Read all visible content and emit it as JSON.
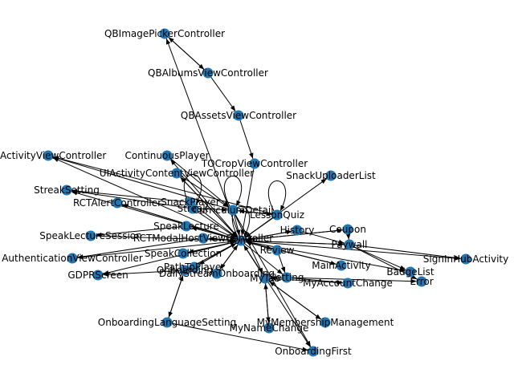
{
  "colors": {
    "node": "#1f77b4",
    "edge": "#000000",
    "label": "#000000",
    "background": "#ffffff"
  },
  "graph": {
    "nodes": [
      {
        "id": "qbimagepicker",
        "label": "QBImagePickerController"
      },
      {
        "id": "qbalbums",
        "label": "QBAlbumsViewController"
      },
      {
        "id": "qbassets",
        "label": "QBAssetsViewController"
      },
      {
        "id": "activityvc",
        "label": "UIActivityViewController"
      },
      {
        "id": "continuous",
        "label": "ContinuousPlayer"
      },
      {
        "id": "tocrop",
        "label": "TOCropViewController"
      },
      {
        "id": "uiactivitycontent",
        "label": "UIActivityContentViewController"
      },
      {
        "id": "snackuploader",
        "label": "SnackUploaderList"
      },
      {
        "id": "streaksetting",
        "label": "StreakSetting"
      },
      {
        "id": "snackplayer",
        "label": "SnackPlayer"
      },
      {
        "id": "rctalert",
        "label": "RCTAlertController"
      },
      {
        "id": "streak",
        "label": "Streak"
      },
      {
        "id": "curriculum",
        "label": "CurriculumDetail"
      },
      {
        "id": "lessonquiz",
        "label": "LessonQuiz"
      },
      {
        "id": "coupon",
        "label": "Coupon"
      },
      {
        "id": "speaklecture",
        "label": "SpeakLecture"
      },
      {
        "id": "speaklecturesession",
        "label": "SpeakLectureSession"
      },
      {
        "id": "rctmodalhost",
        "label": "RCTModalHostViewController"
      },
      {
        "id": "history",
        "label": "History"
      },
      {
        "id": "paywall",
        "label": "Paywall"
      },
      {
        "id": "signinhub",
        "label": "SignInHubActivity"
      },
      {
        "id": "auth",
        "label": "AuthenticationViewController"
      },
      {
        "id": "speakcollection",
        "label": "SpeakCollection"
      },
      {
        "id": "review",
        "label": "Review"
      },
      {
        "id": "mainactivity",
        "label": "MainActivity"
      },
      {
        "id": "badgelist",
        "label": "BadgeList"
      },
      {
        "id": "gdpr",
        "label": "GDPRScreen"
      },
      {
        "id": "onboarding",
        "label": "Onboarding"
      },
      {
        "id": "pathtoplayer",
        "label": "PathToPlayer"
      },
      {
        "id": "dailystream",
        "label": "DailyStreamOnboarding"
      },
      {
        "id": "mytab",
        "label": "MyTab"
      },
      {
        "id": "setting",
        "label": "Setting"
      },
      {
        "id": "error",
        "label": "Error"
      },
      {
        "id": "myaccountchange",
        "label": "MyAccountChange"
      },
      {
        "id": "onboardinglang",
        "label": "OnboardingLanguageSetting"
      },
      {
        "id": "mymembership",
        "label": "MyMembershipManagement"
      },
      {
        "id": "mynamechange",
        "label": "MyNameChange"
      },
      {
        "id": "onboardingfirst",
        "label": "OnboardingFirst"
      },
      {
        "id": "home",
        "label": "Home"
      }
    ],
    "edges": [
      [
        "qbimagepicker",
        "qbalbums"
      ],
      [
        "qbalbums",
        "qbimagepicker"
      ],
      [
        "qbalbums",
        "qbassets"
      ],
      [
        "qbassets",
        "tocrop"
      ],
      [
        "tocrop",
        "home"
      ],
      [
        "home",
        "qbimagepicker"
      ],
      [
        "home",
        "activityvc"
      ],
      [
        "curriculum",
        "activityvc"
      ],
      [
        "lessonquiz",
        "activityvc"
      ],
      [
        "home",
        "uiactivitycontent"
      ],
      [
        "uiactivitycontent",
        "home"
      ],
      [
        "home",
        "continuous"
      ],
      [
        "home",
        "snackuploader"
      ],
      [
        "snackplayer",
        "streaksetting"
      ],
      [
        "home",
        "streaksetting"
      ],
      [
        "home",
        "rctalert"
      ],
      [
        "streak",
        "curriculum"
      ],
      [
        "curriculum",
        "lessonquiz"
      ],
      [
        "lessonquiz",
        "curriculum"
      ],
      [
        "home",
        "coupon"
      ],
      [
        "coupon",
        "home"
      ],
      [
        "speaklecture",
        "speaklecturesession"
      ],
      [
        "home",
        "speaklecture"
      ],
      [
        "home",
        "rctmodalhost"
      ],
      [
        "history",
        "home"
      ],
      [
        "home",
        "history"
      ],
      [
        "paywall",
        "home"
      ],
      [
        "home",
        "paywall"
      ],
      [
        "home",
        "signinhub"
      ],
      [
        "paywall",
        "signinhub"
      ],
      [
        "home",
        "auth"
      ],
      [
        "rctmodalhost",
        "auth"
      ],
      [
        "speakcollection",
        "home"
      ],
      [
        "home",
        "speakcollection"
      ],
      [
        "review",
        "home"
      ],
      [
        "mainactivity",
        "home"
      ],
      [
        "home",
        "mainactivity"
      ],
      [
        "home",
        "badgelist"
      ],
      [
        "paywall",
        "badgelist"
      ],
      [
        "home",
        "gdpr"
      ],
      [
        "onboarding",
        "gdpr"
      ],
      [
        "home",
        "onboarding"
      ],
      [
        "home",
        "pathtoplayer"
      ],
      [
        "dailystream",
        "home"
      ],
      [
        "mytab",
        "home"
      ],
      [
        "setting",
        "mytab"
      ],
      [
        "setting",
        "error"
      ],
      [
        "paywall",
        "error"
      ],
      [
        "mytab",
        "myaccountchange"
      ],
      [
        "setting",
        "myaccountchange"
      ],
      [
        "onboardinglang",
        "onboarding"
      ],
      [
        "onboarding",
        "onboardinglang"
      ],
      [
        "mytab",
        "mymembership"
      ],
      [
        "mymembership",
        "mytab"
      ],
      [
        "mytab",
        "mynamechange"
      ],
      [
        "mynamechange",
        "mytab"
      ],
      [
        "onboardinglang",
        "onboardingfirst"
      ],
      [
        "curriculum",
        "onboardingfirst"
      ],
      [
        "home",
        "onboardingfirst"
      ],
      [
        "streak",
        "home"
      ],
      [
        "snackplayer",
        "home"
      ],
      [
        "home",
        "review"
      ],
      [
        "history",
        "paywall"
      ],
      [
        "coupon",
        "paywall"
      ],
      [
        "review",
        "setting"
      ],
      [
        "home",
        "setting"
      ],
      [
        "curriculum",
        "home"
      ],
      [
        "lessonquiz",
        "home"
      ],
      [
        "speaklecturesession",
        "home"
      ],
      [
        "pathtoplayer",
        "home"
      ],
      [
        "home",
        "dailystream"
      ],
      [
        "streak",
        "streaksetting"
      ],
      [
        "continuous",
        "curriculum"
      ],
      [
        "uiactivitycontent",
        "curriculum"
      ],
      [
        "rctalert",
        "home"
      ],
      [
        "curriculum",
        "mytab"
      ]
    ],
    "self_loops": [
      "curriculum",
      "home",
      "lessonquiz",
      "streak"
    ]
  }
}
